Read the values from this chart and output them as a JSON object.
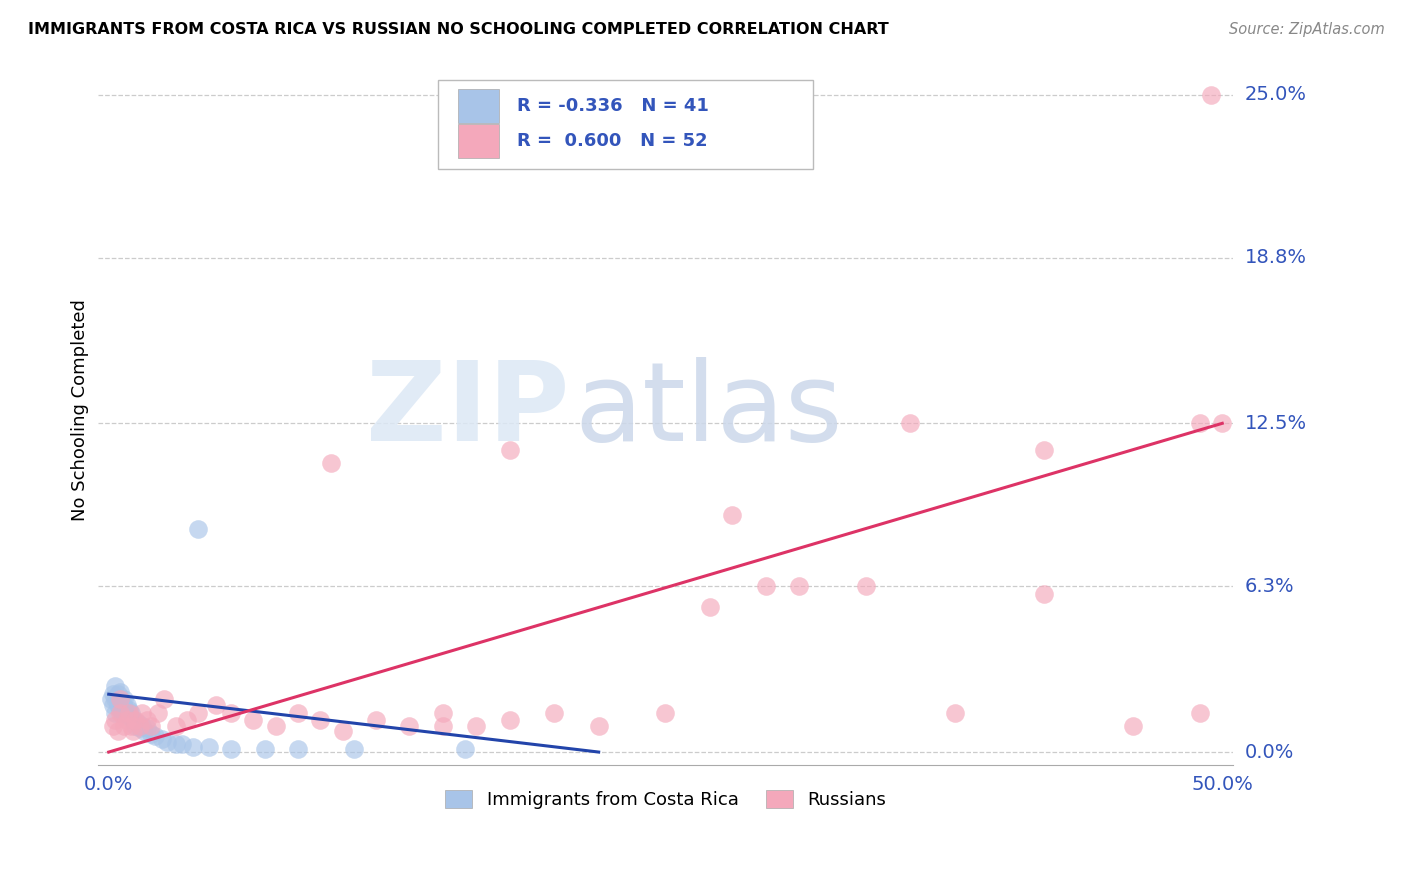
{
  "title": "IMMIGRANTS FROM COSTA RICA VS RUSSIAN NO SCHOOLING COMPLETED CORRELATION CHART",
  "source": "Source: ZipAtlas.com",
  "ylabel_label": "No Schooling Completed",
  "xlim": [
    -0.005,
    0.505
  ],
  "ylim": [
    -0.005,
    0.265
  ],
  "ytick_vals": [
    0.0,
    0.063,
    0.125,
    0.188,
    0.25
  ],
  "ytick_labels": [
    "0.0%",
    "6.3%",
    "12.5%",
    "18.8%",
    "25.0%"
  ],
  "xtick_vals": [
    0.0,
    0.5
  ],
  "xtick_labels": [
    "0.0%",
    "50.0%"
  ],
  "legend_r_costa_rica": "-0.336",
  "legend_n_costa_rica": "41",
  "legend_r_russians": "0.600",
  "legend_n_russians": "52",
  "costa_rica_color": "#a8c4e8",
  "russian_color": "#f4a8bb",
  "trend_costa_rica_color": "#2244aa",
  "trend_russian_color": "#dd3366",
  "costa_rica_x": [
    0.001,
    0.002,
    0.002,
    0.003,
    0.003,
    0.003,
    0.004,
    0.004,
    0.005,
    0.005,
    0.005,
    0.006,
    0.006,
    0.007,
    0.007,
    0.008,
    0.008,
    0.009,
    0.01,
    0.01,
    0.011,
    0.012,
    0.013,
    0.014,
    0.015,
    0.016,
    0.017,
    0.019,
    0.021,
    0.024,
    0.026,
    0.03,
    0.033,
    0.038,
    0.045,
    0.055,
    0.07,
    0.085,
    0.11,
    0.16,
    0.04
  ],
  "costa_rica_y": [
    0.02,
    0.018,
    0.022,
    0.015,
    0.02,
    0.025,
    0.018,
    0.022,
    0.016,
    0.02,
    0.023,
    0.015,
    0.019,
    0.017,
    0.02,
    0.014,
    0.018,
    0.016,
    0.013,
    0.015,
    0.012,
    0.01,
    0.011,
    0.009,
    0.01,
    0.008,
    0.009,
    0.007,
    0.006,
    0.005,
    0.004,
    0.003,
    0.003,
    0.002,
    0.002,
    0.001,
    0.001,
    0.001,
    0.001,
    0.001,
    0.085
  ],
  "russians_x": [
    0.002,
    0.003,
    0.004,
    0.005,
    0.005,
    0.007,
    0.008,
    0.009,
    0.01,
    0.011,
    0.012,
    0.014,
    0.015,
    0.017,
    0.019,
    0.022,
    0.025,
    0.03,
    0.035,
    0.04,
    0.048,
    0.055,
    0.065,
    0.075,
    0.085,
    0.095,
    0.105,
    0.12,
    0.135,
    0.15,
    0.165,
    0.18,
    0.2,
    0.22,
    0.25,
    0.28,
    0.31,
    0.34,
    0.38,
    0.42,
    0.46,
    0.49,
    0.5,
    0.36,
    0.295,
    0.27,
    0.42,
    0.18,
    0.15,
    0.1,
    0.49,
    0.495
  ],
  "russians_y": [
    0.01,
    0.012,
    0.008,
    0.015,
    0.02,
    0.01,
    0.012,
    0.015,
    0.01,
    0.008,
    0.012,
    0.01,
    0.015,
    0.012,
    0.01,
    0.015,
    0.02,
    0.01,
    0.012,
    0.015,
    0.018,
    0.015,
    0.012,
    0.01,
    0.015,
    0.012,
    0.008,
    0.012,
    0.01,
    0.015,
    0.01,
    0.012,
    0.015,
    0.01,
    0.015,
    0.09,
    0.063,
    0.063,
    0.015,
    0.115,
    0.01,
    0.015,
    0.125,
    0.125,
    0.063,
    0.055,
    0.06,
    0.115,
    0.01,
    0.11,
    0.125,
    0.25
  ],
  "cr_trend_x0": 0.0,
  "cr_trend_x1": 0.22,
  "cr_trend_y0": 0.022,
  "cr_trend_y1": 0.0,
  "ru_trend_x0": 0.0,
  "ru_trend_x1": 0.5,
  "ru_trend_y0": 0.0,
  "ru_trend_y1": 0.125
}
